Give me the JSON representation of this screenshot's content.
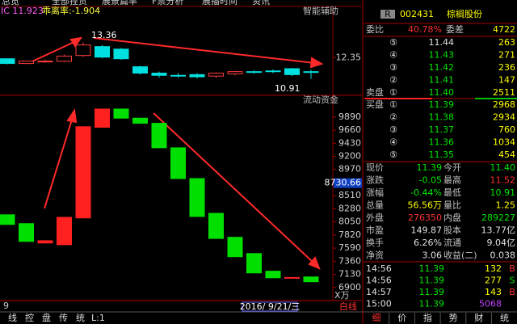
{
  "menu": [
    "总览",
    "全部挂货",
    "展景篇率",
    "F票分析",
    "展播时间",
    "资讯"
  ],
  "indicator": {
    "label": "IC 11.923",
    "value": "乖离率:-1.904",
    "panel": "智能辅助"
  },
  "chart_data": [
    {
      "type": "candlestick",
      "up_color": "#ff3c3c",
      "down_color": "#00e0e0",
      "ylim": [
        9.8,
        15.8
      ],
      "yticks": [
        12.35
      ],
      "annotations": [
        "13.36",
        "10.91"
      ],
      "series": [
        {
          "open": [
            12.27,
            11.95,
            12.06,
            12.1,
            12.49,
            13.09,
            12.92,
            11.73,
            11.3,
            11.15,
            11.2,
            11.1,
            11.25,
            11.4,
            11.45,
            11.6,
            11.4
          ],
          "close": [
            11.95,
            12.11,
            12.11,
            12.45,
            13.2,
            12.38,
            12.27,
            11.3,
            11.15,
            11.1,
            11.05,
            11.3,
            11.4,
            11.35,
            11.4,
            11.2,
            11.39
          ],
          "high": [
            12.3,
            12.15,
            12.2,
            12.55,
            13.36,
            13.2,
            13.0,
            11.8,
            11.4,
            11.3,
            11.3,
            11.35,
            11.45,
            11.5,
            11.55,
            11.65,
            11.52
          ],
          "low": [
            11.9,
            11.9,
            12.0,
            12.05,
            12.4,
            12.3,
            12.2,
            11.2,
            11.0,
            11.0,
            10.95,
            11.0,
            11.15,
            11.25,
            11.3,
            11.1,
            10.91
          ]
        }
      ]
    },
    {
      "type": "candlestick",
      "title": "流动资金",
      "up_color": "#ff2020",
      "down_color": "#00e000",
      "ylim": [
        6670,
        10270
      ],
      "yticks": [
        9890,
        9660,
        9430,
        9200,
        8970,
        8740,
        8510,
        8280,
        8050,
        7820,
        7590,
        7360,
        7130,
        6900
      ],
      "current": {
        "value": 8730.66,
        "label": "8730.66"
      },
      "unit": "X万",
      "date": "2016/ 9/21/三",
      "series": [
        {
          "open": [
            8175,
            8020,
            7680,
            7650,
            8120,
            9710,
            10030,
            9870,
            9780,
            9350,
            8810,
            8200,
            7780,
            7495,
            7185,
            7070,
            7085
          ],
          "close": [
            8005,
            7708,
            7720,
            8130,
            9720,
            10030,
            9870,
            9780,
            9350,
            8810,
            8145,
            7760,
            7440,
            7155,
            7070,
            7075,
            7000
          ]
        }
      ]
    }
  ],
  "bottom": {
    "period": "9",
    "tabs": [
      "线",
      "控",
      "盘",
      "传",
      "统",
      "L:1"
    ],
    "line": "白线"
  },
  "quote": {
    "tag": "R",
    "code": "002431",
    "name": "棕榈股份",
    "wb_label": "委比",
    "wb": "40.78%",
    "wc_label": "委差",
    "wc": "4722",
    "sell_label": "卖盘",
    "buy_label": "买盘",
    "sells": [
      [
        "⑤",
        "11.44",
        "263"
      ],
      [
        "④",
        "11.43",
        "271"
      ],
      [
        "③",
        "11.42",
        "236"
      ],
      [
        "②",
        "11.41",
        "147"
      ],
      [
        "①",
        "11.40",
        "2511"
      ]
    ],
    "buys": [
      [
        "①",
        "11.39",
        "2968"
      ],
      [
        "②",
        "11.38",
        "2934"
      ],
      [
        "③",
        "11.37",
        "760"
      ],
      [
        "④",
        "11.36",
        "1034"
      ],
      [
        "⑤",
        "11.35",
        "454"
      ]
    ],
    "stats": [
      [
        "现价",
        "11.39",
        "今开",
        "11.40"
      ],
      [
        "涨跌",
        "-0.05",
        "最高",
        "11.52"
      ],
      [
        "涨幅",
        "-0.44%",
        "最低",
        "10.91"
      ],
      [
        "总量",
        "56.56万",
        "量比",
        "1.25"
      ],
      [
        "外盘",
        "276350",
        "内盘",
        "289227"
      ],
      [
        "市盈",
        "149.87",
        "股本",
        "13.77亿"
      ],
      [
        "换手",
        "6.26%",
        "流通",
        "9.04亿"
      ],
      [
        "净资",
        "3.06",
        "收益(二)",
        "0.038"
      ]
    ],
    "ticks": [
      [
        "14:56",
        "11.39",
        "132",
        "B"
      ],
      [
        "14:56",
        "11.39",
        "277",
        "S"
      ],
      [
        "14:57",
        "11.39",
        "143",
        "B"
      ],
      [
        "15:00",
        "11.39",
        "5068"
      ]
    ],
    "tabs": [
      "细",
      "价",
      "指",
      "势",
      "财",
      "统"
    ]
  }
}
